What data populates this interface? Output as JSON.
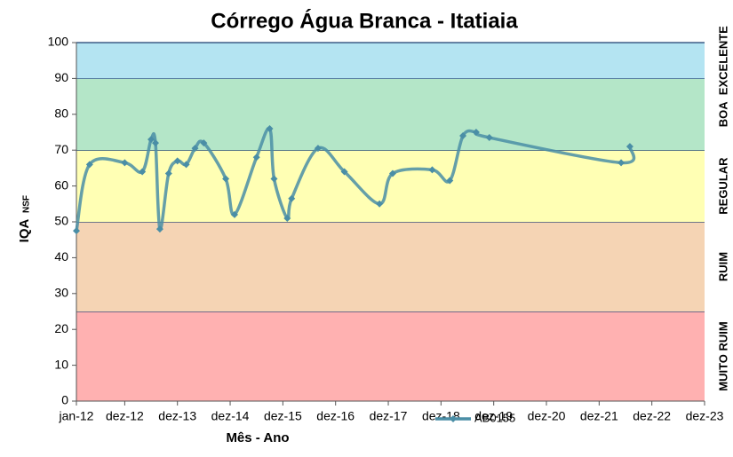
{
  "chart_data": {
    "type": "line",
    "title": "Córrego Água Branca - Itatiaia",
    "xlabel": "Mês - Ano",
    "ylabel": "IQA",
    "ylabel_sub": "NSF",
    "x": [
      "2012-01",
      "2012-04",
      "2012-12",
      "2013-04",
      "2013-06",
      "2013-07",
      "2013-08",
      "2013-10",
      "2013-12",
      "2014-02",
      "2014-04",
      "2014-06",
      "2014-11",
      "2015-01",
      "2015-06",
      "2015-09",
      "2015-10",
      "2016-01",
      "2016-02",
      "2016-08",
      "2017-02",
      "2017-10",
      "2018-01",
      "2018-10",
      "2019-02",
      "2019-05",
      "2019-08",
      "2019-11",
      "2022-05",
      "2022-07"
    ],
    "series": [
      {
        "name": "AB0155",
        "color": "#4a8ea6",
        "values": [
          47.5,
          66,
          66.5,
          64,
          73,
          72,
          48,
          63.5,
          67,
          66,
          70.5,
          72,
          62,
          52,
          68,
          76,
          62,
          51,
          56.5,
          70.5,
          64,
          55,
          63.5,
          64.5,
          61.5,
          74,
          75,
          73.5,
          66.5,
          71
        ]
      }
    ],
    "xlim": [
      "2012-01",
      "2023-12"
    ],
    "xticks": [
      {
        "value": "2012-01",
        "label": "jan-12"
      },
      {
        "value": "2012-12",
        "label": "dez-12"
      },
      {
        "value": "2013-12",
        "label": "dez-13"
      },
      {
        "value": "2014-12",
        "label": "dez-14"
      },
      {
        "value": "2015-12",
        "label": "dez-15"
      },
      {
        "value": "2016-12",
        "label": "dez-16"
      },
      {
        "value": "2017-12",
        "label": "dez-17"
      },
      {
        "value": "2018-12",
        "label": "dez-18"
      },
      {
        "value": "2019-12",
        "label": "dez-19"
      },
      {
        "value": "2020-12",
        "label": "dez-20"
      },
      {
        "value": "2021-12",
        "label": "dez-21"
      },
      {
        "value": "2022-12",
        "label": "dez-22"
      },
      {
        "value": "2023-12",
        "label": "dez-23"
      }
    ],
    "ylim": [
      0,
      100
    ],
    "yticks": [
      0,
      10,
      20,
      30,
      40,
      50,
      60,
      70,
      80,
      90,
      100
    ],
    "bands": [
      {
        "label": "MUITO RUIM",
        "from": 0,
        "to": 25,
        "color": "#ffb1b1"
      },
      {
        "label": "RUIM",
        "from": 25,
        "to": 50,
        "color": "#f5d4b4"
      },
      {
        "label": "REGULAR",
        "from": 50,
        "to": 70,
        "color": "#ffffb4"
      },
      {
        "label": "BOA",
        "from": 70,
        "to": 90,
        "color": "#b4e6c8"
      },
      {
        "label": "EXCELENTE",
        "from": 90,
        "to": 100,
        "color": "#b4e4f2"
      }
    ]
  }
}
